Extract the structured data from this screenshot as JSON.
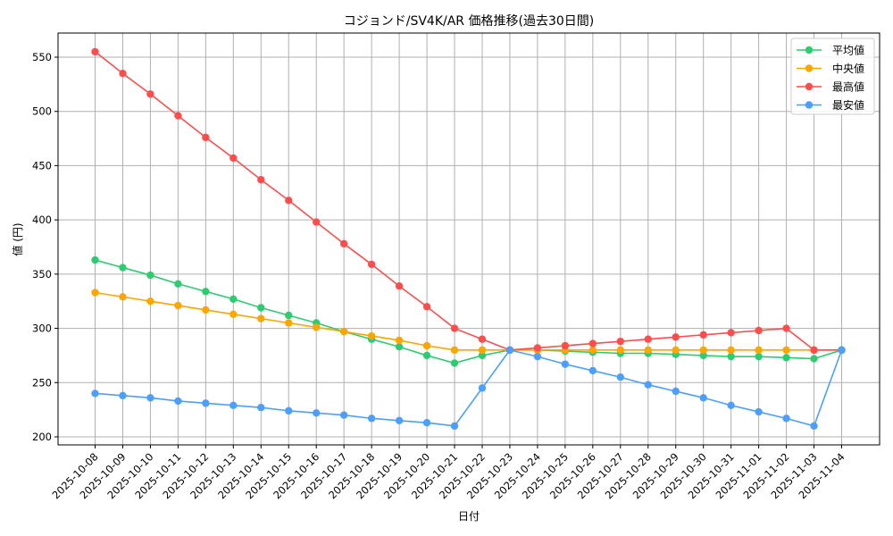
{
  "chart_data": {
    "type": "line",
    "title": "コジョンド/SV4K/AR 価格推移(過去30日間)",
    "xlabel": "日付",
    "ylabel": "値 (円)",
    "ylim": [
      192,
      572
    ],
    "yticks": [
      200,
      250,
      300,
      350,
      400,
      450,
      500,
      550
    ],
    "grid": true,
    "legend_position": "upper right",
    "x": [
      "2025-10-08",
      "2025-10-09",
      "2025-10-10",
      "2025-10-11",
      "2025-10-12",
      "2025-10-13",
      "2025-10-14",
      "2025-10-15",
      "2025-10-16",
      "2025-10-17",
      "2025-10-18",
      "2025-10-19",
      "2025-10-20",
      "2025-10-21",
      "2025-10-22",
      "2025-10-23",
      "2025-10-24",
      "2025-10-25",
      "2025-10-26",
      "2025-10-27",
      "2025-10-28",
      "2025-10-29",
      "2025-10-30",
      "2025-10-31",
      "2025-11-01",
      "2025-11-02",
      "2025-11-03",
      "2025-11-04"
    ],
    "series": [
      {
        "name": "平均値",
        "color": "#2ecc71",
        "values": [
          363,
          356,
          349,
          341,
          334,
          327,
          319,
          312,
          305,
          297,
          290,
          283,
          275,
          268,
          275,
          280,
          280,
          279,
          278,
          277,
          277,
          276,
          275,
          274,
          274,
          273,
          272,
          280
        ]
      },
      {
        "name": "中央値",
        "color": "#ffa500",
        "values": [
          333,
          329,
          325,
          321,
          317,
          313,
          309,
          305,
          301,
          297,
          293,
          289,
          284,
          280,
          280,
          280,
          280,
          280,
          280,
          280,
          280,
          280,
          280,
          280,
          280,
          280,
          280,
          280
        ]
      },
      {
        "name": "最高値",
        "color": "#ff4d4d",
        "values": [
          555,
          535,
          516,
          496,
          476,
          457,
          437,
          418,
          398,
          378,
          359,
          339,
          320,
          300,
          290,
          280,
          282,
          284,
          286,
          288,
          290,
          292,
          294,
          296,
          298,
          300,
          280,
          280
        ]
      },
      {
        "name": "最安値",
        "color": "#4d9fff",
        "values": [
          240,
          238,
          236,
          233,
          231,
          229,
          227,
          224,
          222,
          220,
          217,
          215,
          213,
          210,
          245,
          280,
          274,
          267,
          261,
          255,
          248,
          242,
          236,
          229,
          223,
          217,
          210,
          280
        ]
      }
    ]
  }
}
